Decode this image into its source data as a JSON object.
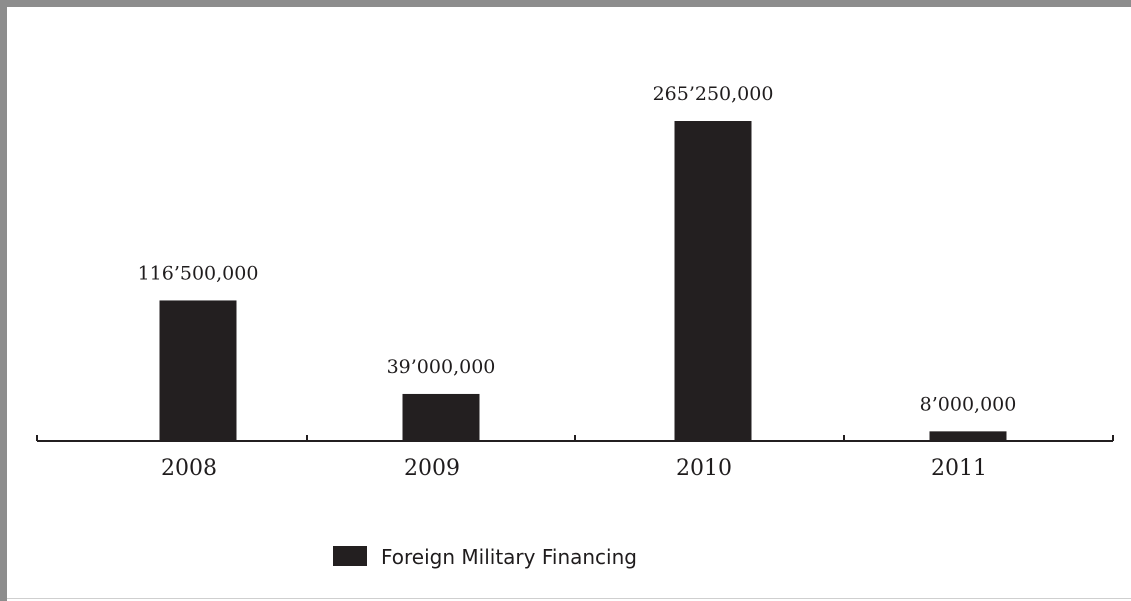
{
  "chart_data": {
    "type": "bar",
    "title": "",
    "xlabel": "",
    "ylabel": "",
    "categories": [
      "2008",
      "2009",
      "2010",
      "2011"
    ],
    "series": [
      {
        "name": "Foreign Military Financing",
        "values": [
          116500000,
          39000000,
          265250000,
          8000000
        ],
        "labels": [
          "116’500,000",
          "39’000,000",
          "265’250,000",
          "8’000,000"
        ],
        "color": "#231f20"
      }
    ],
    "ylim": [
      0,
      265250000
    ],
    "grid": false,
    "legend": "bottom"
  }
}
